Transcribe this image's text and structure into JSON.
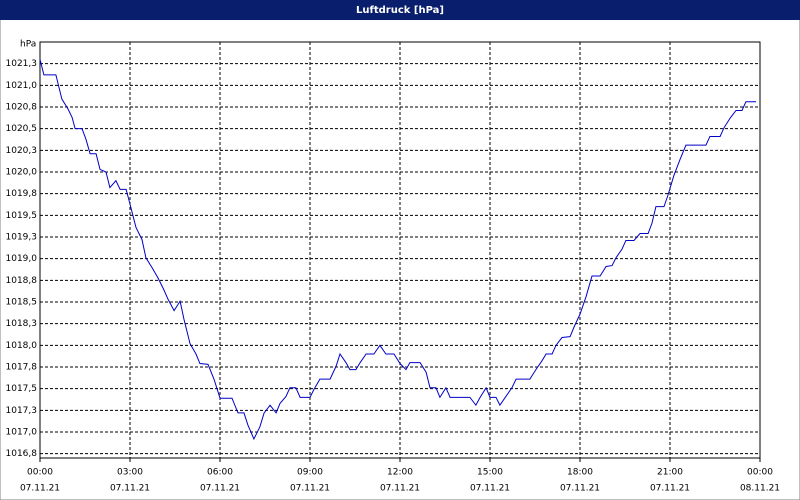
{
  "chart_data": {
    "type": "line",
    "title": "Luftdruck [hPa]",
    "ylabel": "hPa",
    "xlim": [
      0,
      24
    ],
    "xticks": [
      {
        "value": 0,
        "label": "00:00",
        "date": "07.11.21"
      },
      {
        "value": 3,
        "label": "03:00",
        "date": "07.11.21"
      },
      {
        "value": 6,
        "label": "06:00",
        "date": "07.11.21"
      },
      {
        "value": 9,
        "label": "09:00",
        "date": "07.11.21"
      },
      {
        "value": 12,
        "label": "12:00",
        "date": "07.11.21"
      },
      {
        "value": 15,
        "label": "15:00",
        "date": "07.11.21"
      },
      {
        "value": 18,
        "label": "18:00",
        "date": "07.11.21"
      },
      {
        "value": 21,
        "label": "21:00",
        "date": "07.11.21"
      },
      {
        "value": 24,
        "label": "00:00",
        "date": "08.11.21"
      }
    ],
    "ylim": [
      1016.7,
      1021.5
    ],
    "yticks": [
      {
        "value": 1016.75,
        "label": "1016,8"
      },
      {
        "value": 1017,
        "label": "1017,0"
      },
      {
        "value": 1017.25,
        "label": "1017,3"
      },
      {
        "value": 1017.5,
        "label": "1017,5"
      },
      {
        "value": 1017.75,
        "label": "1017,8"
      },
      {
        "value": 1018,
        "label": "1018,0"
      },
      {
        "value": 1018.25,
        "label": "1018,3"
      },
      {
        "value": 1018.5,
        "label": "1018,5"
      },
      {
        "value": 1018.75,
        "label": "1018,8"
      },
      {
        "value": 1019,
        "label": "1019,0"
      },
      {
        "value": 1019.25,
        "label": "1019,3"
      },
      {
        "value": 1019.5,
        "label": "1019,5"
      },
      {
        "value": 1019.75,
        "label": "1019,8"
      },
      {
        "value": 1020,
        "label": "1020,0"
      },
      {
        "value": 1020.25,
        "label": "1020,3"
      },
      {
        "value": 1020.5,
        "label": "1020,5"
      },
      {
        "value": 1020.75,
        "label": "1020,8"
      },
      {
        "value": 1021,
        "label": "1021,0"
      },
      {
        "value": 1021.25,
        "label": "1021,3"
      }
    ],
    "grid": true,
    "x": [
      0,
      0.13,
      0.53,
      0.73,
      0.93,
      1.07,
      1.17,
      1.4,
      1.53,
      1.67,
      1.87,
      2,
      2.2,
      2.33,
      2.53,
      2.67,
      2.87,
      3,
      3.2,
      3.4,
      3.53,
      3.73,
      3.93,
      4.13,
      4.27,
      4.47,
      4.67,
      4.8,
      5,
      5.2,
      5.33,
      5.6,
      5.8,
      6,
      6.4,
      6.6,
      6.8,
      6.93,
      7.13,
      7.33,
      7.47,
      7.67,
      7.87,
      8,
      8.2,
      8.33,
      8.53,
      8.67,
      9,
      9.13,
      9.33,
      9.67,
      9.87,
      10,
      10.2,
      10.33,
      10.53,
      10.67,
      10.87,
      11.13,
      11.33,
      11.53,
      11.8,
      12,
      12.2,
      12.33,
      12.67,
      12.87,
      13,
      13.2,
      13.33,
      13.53,
      13.67,
      14.33,
      14.53,
      14.67,
      14.87,
      15,
      15.2,
      15.33,
      15.53,
      15.73,
      15.87,
      16.33,
      16.53,
      16.73,
      16.87,
      17.07,
      17.2,
      17.4,
      17.67,
      17.8,
      18,
      18.2,
      18.4,
      18.67,
      18.87,
      19.07,
      19.2,
      19.4,
      19.53,
      19.8,
      20,
      20.27,
      20.4,
      20.53,
      20.8,
      20.93,
      21.13,
      21.33,
      21.53,
      22.2,
      22.33,
      22.67,
      22.8,
      23,
      23.2,
      23.4,
      23.53,
      23.87
    ],
    "series": [
      {
        "name": "Luftdruck",
        "color": "#0000c8",
        "values": [
          1021.3,
          1021.12,
          1021.12,
          1020.84,
          1020.73,
          1020.63,
          1020.5,
          1020.5,
          1020.38,
          1020.21,
          1020.21,
          1020.03,
          1020.0,
          1019.82,
          1019.9,
          1019.8,
          1019.8,
          1019.63,
          1019.36,
          1019.22,
          1019.01,
          1018.9,
          1018.78,
          1018.64,
          1018.53,
          1018.4,
          1018.51,
          1018.3,
          1018.02,
          1017.9,
          1017.79,
          1017.78,
          1017.61,
          1017.39,
          1017.39,
          1017.22,
          1017.22,
          1017.08,
          1016.92,
          1017.06,
          1017.22,
          1017.31,
          1017.22,
          1017.33,
          1017.41,
          1017.51,
          1017.51,
          1017.4,
          1017.4,
          1017.49,
          1017.61,
          1017.61,
          1017.76,
          1017.9,
          1017.8,
          1017.72,
          1017.72,
          1017.8,
          1017.9,
          1017.9,
          1018.0,
          1017.9,
          1017.9,
          1017.79,
          1017.72,
          1017.8,
          1017.8,
          1017.69,
          1017.51,
          1017.51,
          1017.4,
          1017.51,
          1017.4,
          1017.4,
          1017.31,
          1017.4,
          1017.51,
          1017.4,
          1017.4,
          1017.31,
          1017.41,
          1017.51,
          1017.61,
          1017.61,
          1017.72,
          1017.82,
          1017.9,
          1017.9,
          1018.0,
          1018.09,
          1018.1,
          1018.21,
          1018.36,
          1018.56,
          1018.8,
          1018.8,
          1018.91,
          1018.92,
          1019.01,
          1019.11,
          1019.21,
          1019.21,
          1019.29,
          1019.29,
          1019.41,
          1019.6,
          1019.6,
          1019.73,
          1019.96,
          1020.14,
          1020.31,
          1020.31,
          1020.41,
          1020.41,
          1020.51,
          1020.62,
          1020.71,
          1020.71,
          1020.81,
          1020.81
        ]
      }
    ]
  }
}
